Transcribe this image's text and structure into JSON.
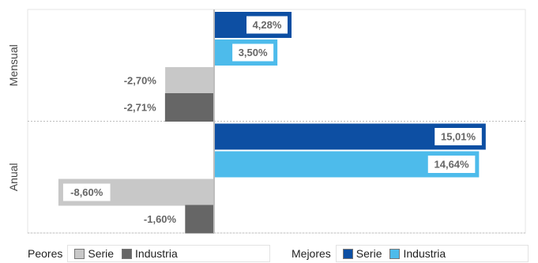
{
  "chart_data": {
    "type": "bar",
    "orientation": "horizontal",
    "groups": [
      "Mensual",
      "Anual"
    ],
    "series": [
      {
        "name": "Serie",
        "class": "Mejores",
        "color": "#0d4fa3",
        "values": [
          4.28,
          15.01
        ]
      },
      {
        "name": "Industria",
        "class": "Mejores",
        "color": "#4dbbeb",
        "values": [
          3.5,
          14.64
        ]
      },
      {
        "name": "Serie",
        "class": "Peores",
        "color": "#c8c8c8",
        "values": [
          -2.7,
          -8.6
        ]
      },
      {
        "name": "Industria",
        "class": "Peores",
        "color": "#666666",
        "values": [
          -2.71,
          -1.6
        ]
      }
    ],
    "bar_order": [
      0,
      1,
      2,
      3
    ],
    "labels": {
      "Mensual": [
        "4,28%",
        "3,50%",
        "-2,70%",
        "-2,71%"
      ],
      "Anual": [
        "15,01%",
        "14,64%",
        "-8,60%",
        "-1,60%"
      ]
    },
    "xlim": [
      -10.3,
      17.2
    ],
    "grid": true
  },
  "legend": {
    "peores": {
      "title": "Peores",
      "items": [
        {
          "label": "Serie",
          "color": "#c8c8c8"
        },
        {
          "label": "Industria",
          "color": "#666666"
        }
      ]
    },
    "mejores": {
      "title": "Mejores",
      "items": [
        {
          "label": "Serie",
          "color": "#0d4fa3"
        },
        {
          "label": "Industria",
          "color": "#4dbbeb"
        }
      ]
    }
  }
}
